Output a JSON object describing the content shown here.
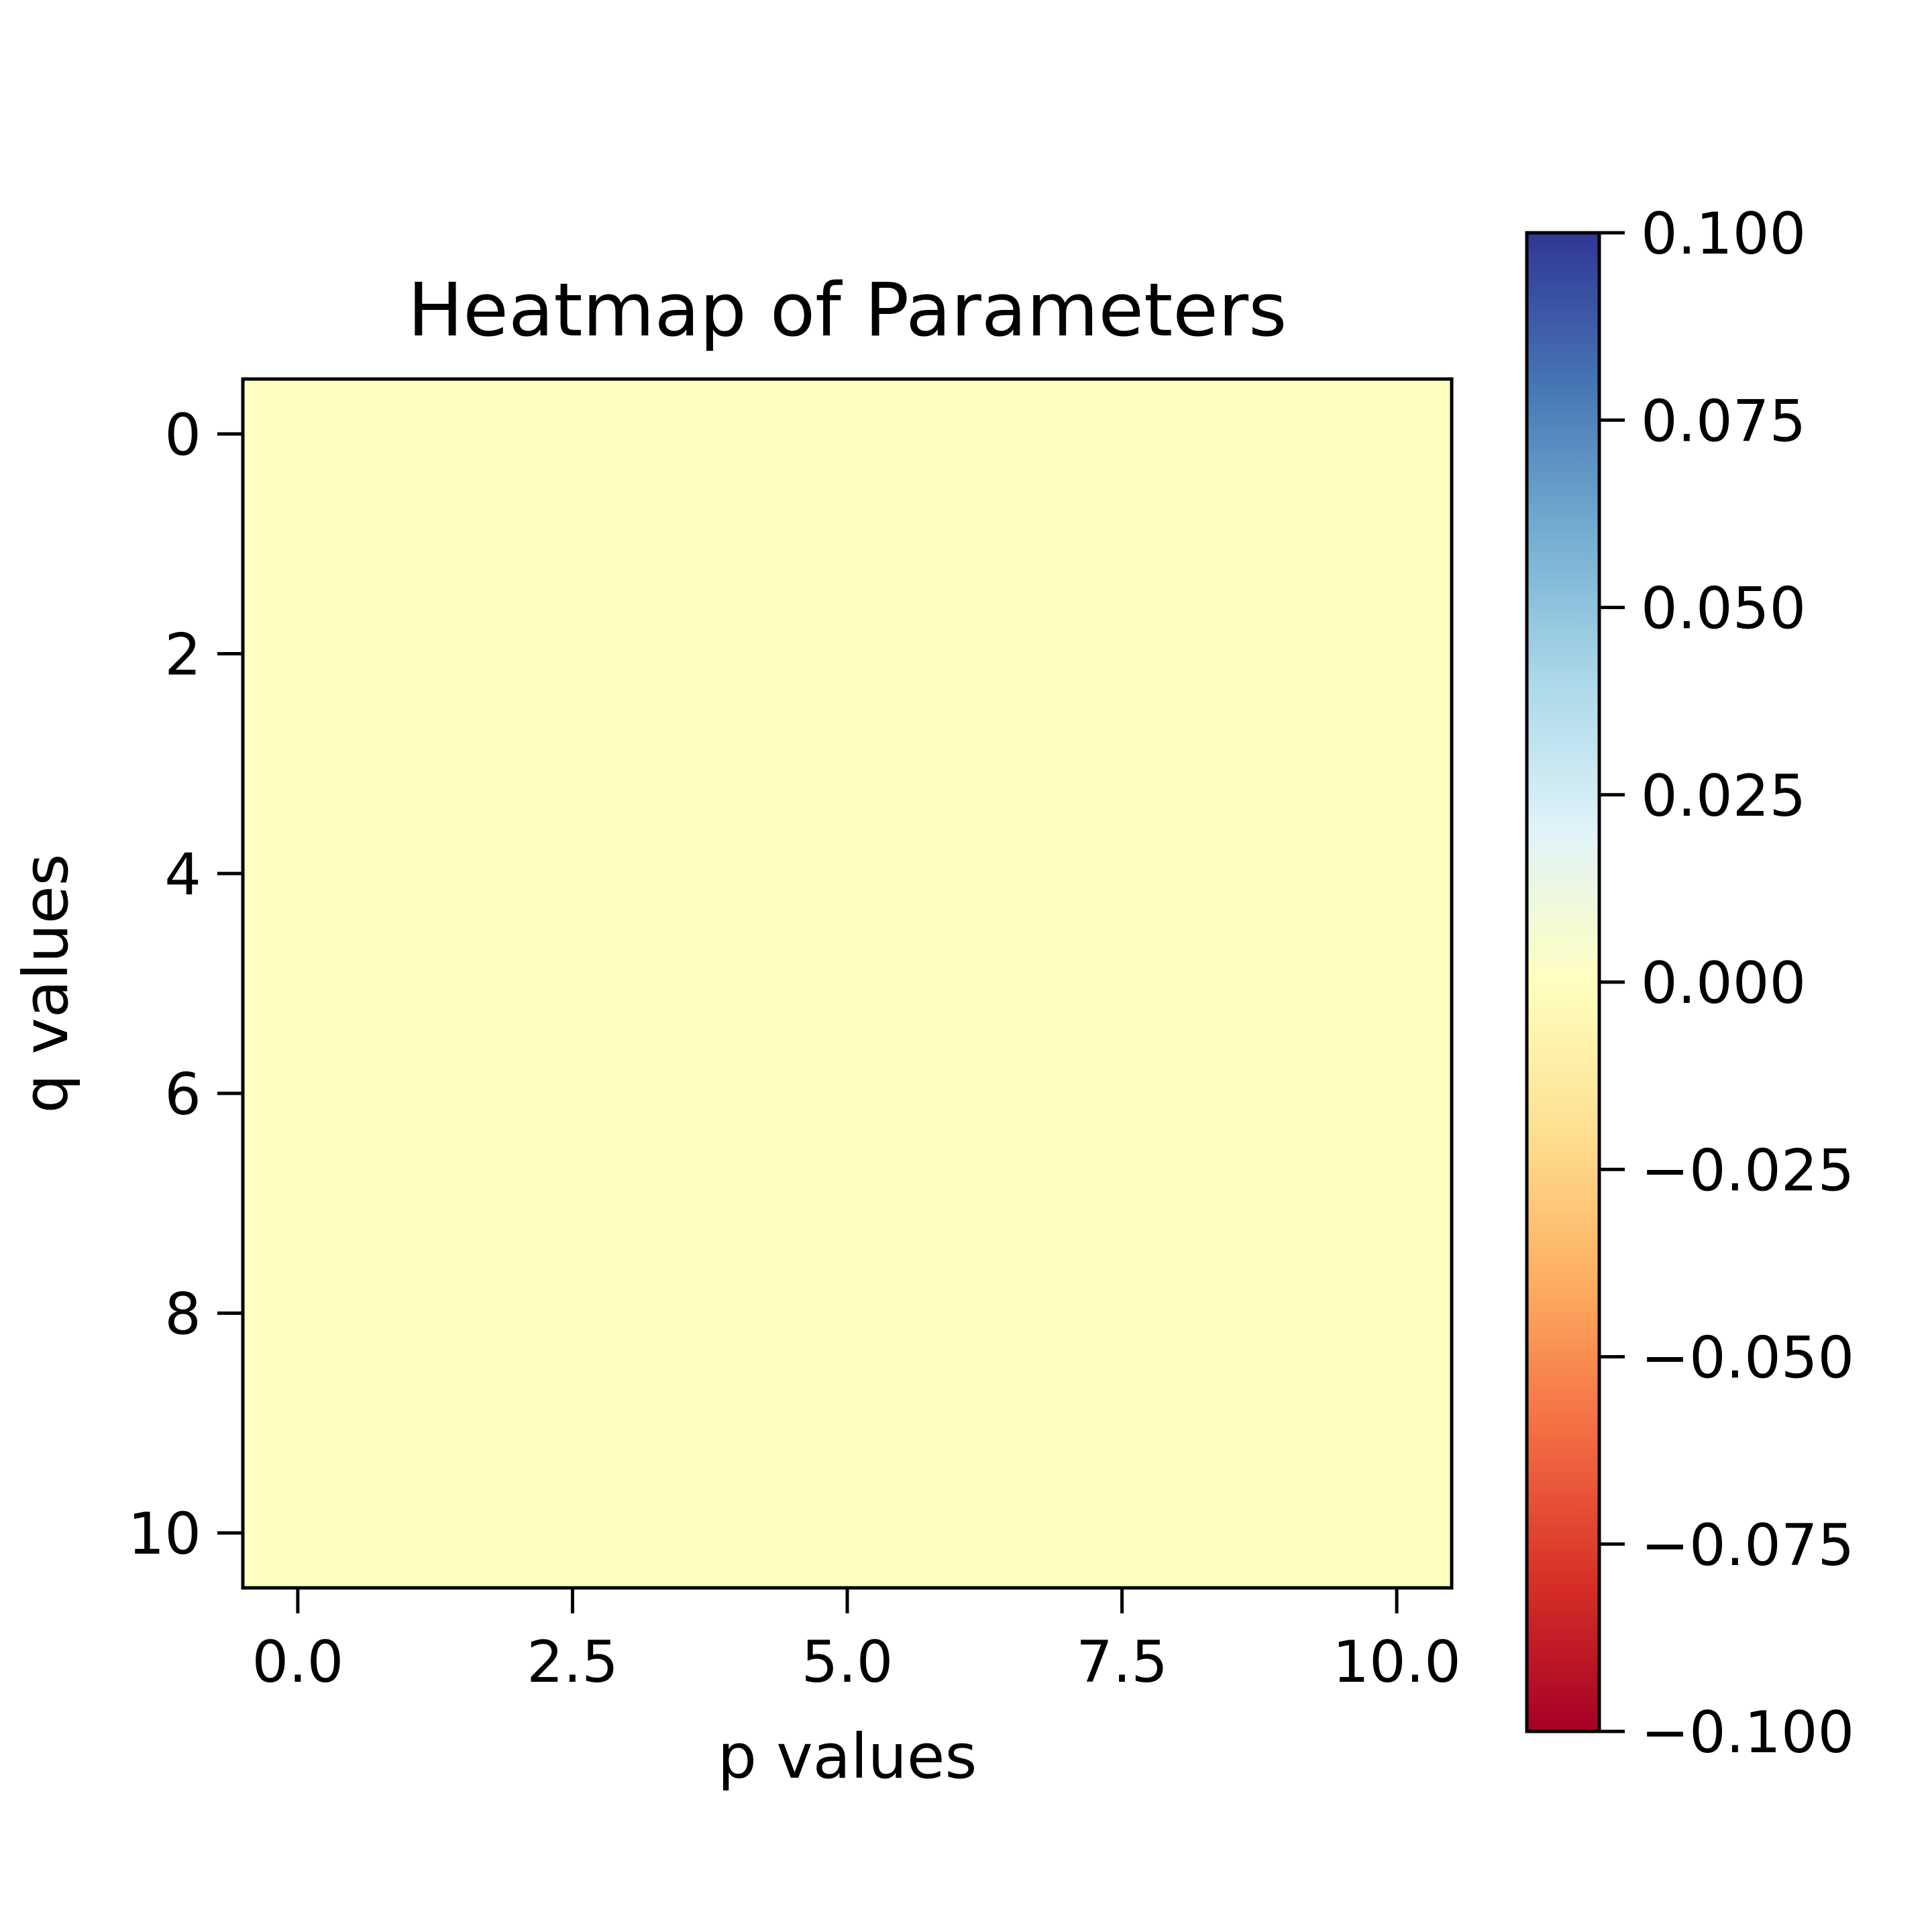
{
  "chart_data": {
    "type": "heatmap",
    "title": "Heatmap of Parameters",
    "xlabel": "p values",
    "ylabel": "q values",
    "x": [
      0,
      1,
      2,
      3,
      4,
      5,
      6,
      7,
      8,
      9,
      10
    ],
    "y": [
      0,
      1,
      2,
      3,
      4,
      5,
      6,
      7,
      8,
      9,
      10
    ],
    "xlim": [
      -0.5,
      10.5
    ],
    "ylim": [
      -0.5,
      10.5
    ],
    "y_inverted": true,
    "values": [
      [
        0,
        0,
        0,
        0,
        0,
        0,
        0,
        0,
        0,
        0,
        0
      ],
      [
        0,
        0,
        0,
        0,
        0,
        0,
        0,
        0,
        0,
        0,
        0
      ],
      [
        0,
        0,
        0,
        0,
        0,
        0,
        0,
        0,
        0,
        0,
        0
      ],
      [
        0,
        0,
        0,
        0,
        0,
        0,
        0,
        0,
        0,
        0,
        0
      ],
      [
        0,
        0,
        0,
        0,
        0,
        0,
        0,
        0,
        0,
        0,
        0
      ],
      [
        0,
        0,
        0,
        0,
        0,
        0,
        0,
        0,
        0,
        0,
        0
      ],
      [
        0,
        0,
        0,
        0,
        0,
        0,
        0,
        0,
        0,
        0,
        0
      ],
      [
        0,
        0,
        0,
        0,
        0,
        0,
        0,
        0,
        0,
        0,
        0
      ],
      [
        0,
        0,
        0,
        0,
        0,
        0,
        0,
        0,
        0,
        0,
        0
      ],
      [
        0,
        0,
        0,
        0,
        0,
        0,
        0,
        0,
        0,
        0,
        0
      ],
      [
        0,
        0,
        0,
        0,
        0,
        0,
        0,
        0,
        0,
        0,
        0
      ]
    ],
    "xticks": [
      0,
      2.5,
      5,
      7.5,
      10
    ],
    "xtick_labels": [
      "0.0",
      "2.5",
      "5.0",
      "7.5",
      "10.0"
    ],
    "yticks": [
      0,
      2,
      4,
      6,
      8,
      10
    ],
    "ytick_labels": [
      "0",
      "2",
      "4",
      "6",
      "8",
      "10"
    ],
    "colormap": "RdYlBu",
    "colormap_stops": [
      "#a50026",
      "#d73027",
      "#f46d43",
      "#fdae61",
      "#fee090",
      "#ffffbf",
      "#e0f3f8",
      "#abd9e9",
      "#74add1",
      "#4575b4",
      "#313695"
    ],
    "colorbar": {
      "range": [
        -0.1,
        0.1
      ],
      "ticks": [
        -0.1,
        -0.075,
        -0.05,
        -0.025,
        0,
        0.025,
        0.05,
        0.075,
        0.1
      ],
      "tick_labels": [
        "−0.100",
        "−0.075",
        "−0.050",
        "−0.025",
        "0.000",
        "0.025",
        "0.050",
        "0.075",
        "0.100"
      ]
    },
    "grid": false,
    "legend": "none"
  }
}
